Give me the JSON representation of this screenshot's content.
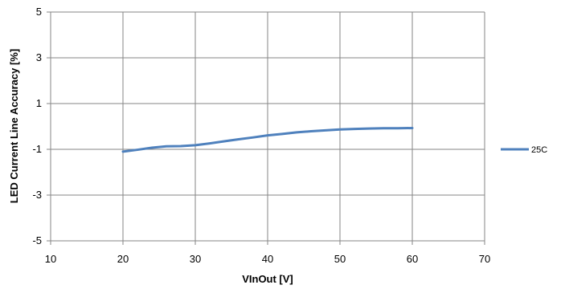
{
  "chart_data": {
    "type": "line",
    "title": "",
    "xlabel": "VInOut [V]",
    "ylabel": "LED Current Line Accuracy [%]",
    "xlim": [
      10,
      70
    ],
    "ylim": [
      -5,
      5
    ],
    "x_ticks": [
      "10",
      "20",
      "30",
      "40",
      "50",
      "60",
      "70"
    ],
    "y_ticks": [
      "5",
      "3",
      "1",
      "-1",
      "-3",
      "-5"
    ],
    "grid": true,
    "legend": "right",
    "series": [
      {
        "name": "25C",
        "color": "#4F81BD",
        "x": [
          20,
          22,
          24,
          26,
          28,
          30,
          32,
          34,
          36,
          38,
          40,
          42,
          44,
          46,
          48,
          50,
          52,
          54,
          56,
          58,
          60
        ],
        "y": [
          -1.1,
          -1.02,
          -0.93,
          -0.87,
          -0.86,
          -0.82,
          -0.74,
          -0.65,
          -0.56,
          -0.48,
          -0.39,
          -0.33,
          -0.26,
          -0.21,
          -0.17,
          -0.13,
          -0.11,
          -0.09,
          -0.08,
          -0.08,
          -0.07
        ]
      }
    ]
  }
}
